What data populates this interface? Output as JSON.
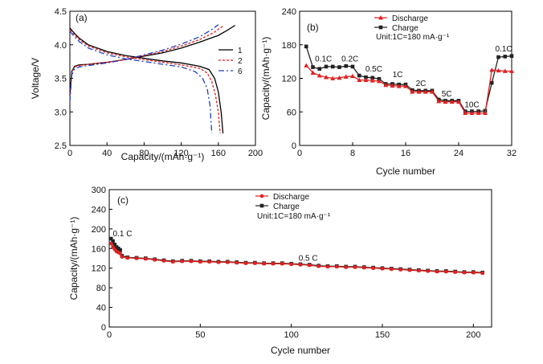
{
  "chart_data": [
    {
      "panel_label": "(a)",
      "type": "line",
      "xlabel": "Capacity/(mAh·g⁻¹)",
      "ylabel": "Voltage/V",
      "xlim": [
        0,
        200
      ],
      "ylim": [
        2.5,
        4.5
      ],
      "xticks": [
        "0",
        "40",
        "80",
        "120",
        "160",
        "200"
      ],
      "yticks": [
        "2.5",
        "3.0",
        "3.5",
        "4.0",
        "4.5"
      ],
      "legend_position": "right",
      "colors": {
        "1": "#000000",
        "2": "#e02020",
        "6": "#2040c0"
      },
      "series": [
        {
          "name": "1",
          "style": "solid",
          "charge_x": [
            0,
            2,
            5,
            10,
            20,
            40,
            60,
            80,
            100,
            120,
            140,
            160,
            170,
            178
          ],
          "charge_y": [
            3.25,
            3.6,
            3.68,
            3.7,
            3.71,
            3.74,
            3.78,
            3.83,
            3.88,
            3.95,
            4.04,
            4.14,
            4.22,
            4.29
          ],
          "discharge_x": [
            0,
            5,
            10,
            20,
            40,
            60,
            80,
            100,
            120,
            140,
            150,
            156,
            160,
            163,
            165
          ],
          "discharge_y": [
            4.25,
            4.17,
            4.1,
            4.0,
            3.9,
            3.84,
            3.8,
            3.76,
            3.73,
            3.68,
            3.63,
            3.5,
            3.3,
            3.0,
            2.68
          ]
        },
        {
          "name": "2",
          "style": "dotted",
          "charge_x": [
            0,
            2,
            5,
            10,
            20,
            40,
            60,
            80,
            100,
            120,
            140,
            155,
            165
          ],
          "charge_y": [
            3.2,
            3.58,
            3.67,
            3.69,
            3.71,
            3.74,
            3.78,
            3.84,
            3.9,
            3.98,
            4.08,
            4.18,
            4.28
          ],
          "discharge_x": [
            0,
            5,
            10,
            20,
            40,
            60,
            80,
            100,
            120,
            140,
            148,
            153,
            157,
            160,
            162
          ],
          "discharge_y": [
            4.22,
            4.15,
            4.08,
            3.98,
            3.88,
            3.82,
            3.78,
            3.74,
            3.7,
            3.65,
            3.58,
            3.45,
            3.25,
            3.0,
            2.68
          ]
        },
        {
          "name": "6",
          "style": "dashdot",
          "charge_x": [
            0,
            2,
            5,
            10,
            20,
            40,
            60,
            80,
            100,
            120,
            140,
            152,
            160
          ],
          "charge_y": [
            3.15,
            3.55,
            3.64,
            3.67,
            3.69,
            3.73,
            3.78,
            3.85,
            3.92,
            4.01,
            4.12,
            4.22,
            4.3
          ],
          "discharge_x": [
            0,
            5,
            10,
            20,
            40,
            60,
            80,
            100,
            120,
            135,
            143,
            148,
            151,
            153
          ],
          "discharge_y": [
            4.2,
            4.12,
            4.05,
            3.95,
            3.85,
            3.79,
            3.75,
            3.71,
            3.67,
            3.6,
            3.5,
            3.35,
            3.1,
            2.68
          ]
        }
      ]
    },
    {
      "panel_label": "(b)",
      "type": "line",
      "xlabel": "Cycle number",
      "ylabel": "Capacity/(mAh·g⁻¹)",
      "xlim": [
        0,
        32
      ],
      "ylim": [
        0,
        240
      ],
      "xticks": [
        "0",
        "8",
        "16",
        "24",
        "32"
      ],
      "yticks": [
        "0",
        "60",
        "120",
        "180",
        "240"
      ],
      "legend": [
        "Discharge",
        "Charge"
      ],
      "unit_note": "Unit:1C=180 mA·g⁻¹",
      "legend_position": "top-center",
      "colors": {
        "Discharge": "#e02020",
        "Charge": "#222222"
      },
      "rate_labels": [
        {
          "text": "0.1C",
          "x": 3.6,
          "y": 150
        },
        {
          "text": "0.2C",
          "x": 7.6,
          "y": 150
        },
        {
          "text": "0.5C",
          "x": 11.2,
          "y": 132
        },
        {
          "text": "1C",
          "x": 14.8,
          "y": 122
        },
        {
          "text": "2C",
          "x": 18.3,
          "y": 106
        },
        {
          "text": "5C",
          "x": 22.2,
          "y": 88
        },
        {
          "text": "10C",
          "x": 26.0,
          "y": 68
        },
        {
          "text": "0.1C",
          "x": 30.8,
          "y": 168
        }
      ],
      "x": [
        1,
        2,
        3,
        4,
        5,
        6,
        7,
        8,
        9,
        10,
        11,
        12,
        13,
        14,
        15,
        16,
        17,
        18,
        19,
        20,
        21,
        22,
        23,
        24,
        25,
        26,
        27,
        28,
        29,
        30,
        31,
        32
      ],
      "series": [
        {
          "name": "Charge",
          "marker": "square",
          "values": [
            177,
            140,
            137,
            141,
            141,
            140,
            142,
            141,
            125,
            122,
            121,
            119,
            110,
            110,
            109,
            109,
            99,
            98,
            98,
            98,
            82,
            80,
            80,
            80,
            61,
            61,
            61,
            62,
            112,
            158,
            159,
            160
          ]
        },
        {
          "name": "Discharge",
          "marker": "triangle",
          "values": [
            143,
            130,
            125,
            122,
            120,
            121,
            123,
            124,
            117,
            117,
            116,
            115,
            108,
            107,
            106,
            106,
            96,
            96,
            96,
            96,
            79,
            78,
            78,
            78,
            58,
            58,
            58,
            58,
            135,
            134,
            133,
            133
          ]
        }
      ]
    },
    {
      "panel_label": "(c)",
      "type": "line",
      "xlabel": "Cycle number",
      "ylabel": "Capacity/(mAh·g⁻¹)",
      "xlim": [
        0,
        210
      ],
      "ylim": [
        0,
        300
      ],
      "xticks": [
        "0",
        "50",
        "100",
        "150",
        "200"
      ],
      "yticks": [
        "0",
        "40",
        "80",
        "120",
        "160",
        "200",
        "240",
        "300"
      ],
      "ytick_values": [
        0,
        40,
        80,
        120,
        160,
        200,
        240,
        300
      ],
      "legend": [
        "Discharge",
        "Charge"
      ],
      "unit_note": "Unit:1C=180 mA·g⁻¹",
      "legend_position": "top-center",
      "colors": {
        "Discharge": "#e02020",
        "Charge": "#222222"
      },
      "rate_labels": [
        {
          "text": "0.1 C",
          "x": 2,
          "y": 185
        },
        {
          "text": "0.5 C",
          "x": 104,
          "y": 135
        }
      ],
      "series": [
        {
          "name": "Charge",
          "marker": "square",
          "x": [
            1,
            2,
            3,
            4,
            5,
            6,
            7,
            10,
            15,
            20,
            25,
            30,
            35,
            40,
            45,
            50,
            55,
            60,
            65,
            70,
            75,
            80,
            85,
            90,
            95,
            100,
            105,
            110,
            115,
            120,
            125,
            130,
            135,
            140,
            145,
            150,
            155,
            160,
            165,
            170,
            175,
            180,
            185,
            190,
            195,
            200,
            205
          ],
          "values": [
            180,
            175,
            168,
            163,
            160,
            157,
            145,
            142,
            141,
            140,
            138,
            136,
            134,
            135,
            135,
            134,
            134,
            133,
            133,
            132,
            131,
            131,
            130,
            130,
            130,
            129,
            128,
            127,
            125,
            124,
            124,
            123,
            123,
            122,
            121,
            120,
            119,
            118,
            117,
            116,
            115,
            114,
            114,
            113,
            112,
            112,
            111
          ]
        },
        {
          "name": "Discharge",
          "marker": "circle",
          "x": [
            1,
            2,
            3,
            4,
            5,
            6,
            7,
            10,
            15,
            20,
            25,
            30,
            35,
            40,
            45,
            50,
            55,
            60,
            65,
            70,
            75,
            80,
            85,
            90,
            95,
            100,
            105,
            110,
            115,
            120,
            125,
            130,
            135,
            140,
            145,
            150,
            155,
            160,
            165,
            170,
            175,
            180,
            185,
            190,
            195,
            200,
            205
          ],
          "values": [
            170,
            163,
            158,
            154,
            152,
            150,
            143,
            141,
            140,
            139,
            137,
            135,
            133,
            134,
            134,
            133,
            133,
            132,
            132,
            131,
            130,
            130,
            129,
            129,
            129,
            128,
            127,
            126,
            124,
            123,
            123,
            122,
            122,
            121,
            120,
            119,
            118,
            117,
            116,
            115,
            114,
            113,
            113,
            112,
            111,
            111,
            110
          ]
        }
      ]
    }
  ]
}
